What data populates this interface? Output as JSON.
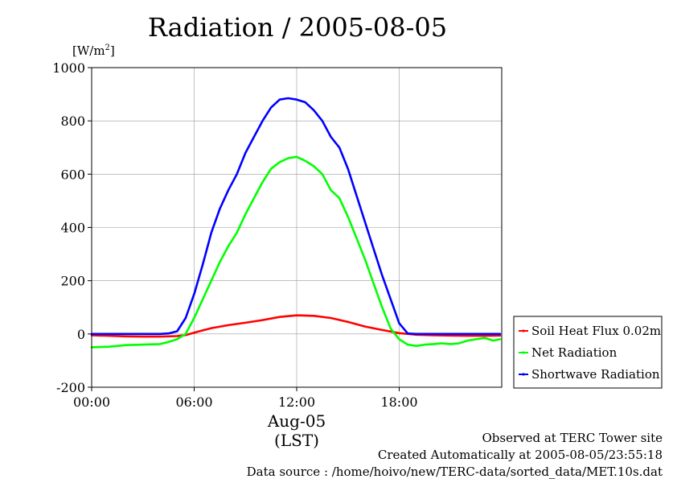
{
  "title": "Radiation / 2005-08-05",
  "unit": {
    "text": "[W/m",
    "sup": "2",
    "close": "]"
  },
  "x_axis": {
    "ticks": [
      "00:00",
      "06:00",
      "12:00",
      "18:00"
    ],
    "date_label": "Aug-05",
    "tz_label": "(LST)"
  },
  "footer": {
    "observed": "Observed at TERC Tower site",
    "created": "Created Automatically at 2005-08-05/23:55:18",
    "source": "Data source : /home/hoivo/new/TERC-data/sorted_data/MET.10s.dat"
  },
  "chart_data": {
    "type": "line",
    "xlabel": "Aug-05 (LST)",
    "ylabel": "[W/m2]",
    "xlim": [
      0,
      24
    ],
    "ylim": [
      -200,
      1000
    ],
    "x_ticks": [
      0,
      6,
      12,
      18
    ],
    "y_ticks": [
      -200,
      0,
      200,
      400,
      600,
      800,
      1000
    ],
    "y_tick_labels": [
      "-200",
      "0",
      "200",
      "400",
      "600",
      "800",
      "1000"
    ],
    "grid": true,
    "legend_position": "right",
    "series": [
      {
        "name": "Soil Heat Flux 0.02m",
        "color": "#ff0000",
        "x": [
          0,
          1,
          2,
          3,
          4,
          5,
          5.5,
          6,
          7,
          8,
          9,
          10,
          11,
          12,
          13,
          14,
          15,
          16,
          17,
          18,
          19,
          20,
          21,
          22,
          23,
          23.9
        ],
        "y": [
          -5,
          -7,
          -9,
          -10,
          -10,
          -8,
          -4,
          5,
          22,
          33,
          42,
          52,
          64,
          70,
          68,
          60,
          45,
          28,
          15,
          3,
          -3,
          -5,
          -6,
          -7,
          -7,
          -6
        ]
      },
      {
        "name": "Net Radiation",
        "color": "#00ff00",
        "x": [
          0,
          1,
          2,
          3,
          4,
          4.5,
          5,
          5.5,
          6,
          6.5,
          7,
          7.5,
          8,
          8.5,
          9,
          9.5,
          10,
          10.5,
          11,
          11.5,
          12,
          12.5,
          13,
          13.5,
          14,
          14.5,
          15,
          15.5,
          16,
          16.5,
          17,
          17.5,
          18,
          18.5,
          19,
          19.5,
          20,
          20.5,
          21,
          21.5,
          22,
          22.5,
          23,
          23.5,
          23.9
        ],
        "y": [
          -50,
          -48,
          -42,
          -40,
          -38,
          -30,
          -20,
          0,
          60,
          130,
          200,
          270,
          330,
          380,
          450,
          510,
          570,
          620,
          645,
          660,
          665,
          650,
          630,
          600,
          540,
          510,
          440,
          360,
          280,
          190,
          100,
          20,
          -20,
          -40,
          -45,
          -40,
          -38,
          -35,
          -38,
          -35,
          -25,
          -20,
          -15,
          -25,
          -20
        ]
      },
      {
        "name": "Shortwave Radiation",
        "color": "#0000ff",
        "x": [
          0,
          1,
          2,
          3,
          4,
          4.5,
          5,
          5.5,
          6,
          6.5,
          7,
          7.5,
          8,
          8.5,
          9,
          9.5,
          10,
          10.5,
          11,
          11.5,
          12,
          12.5,
          13,
          13.5,
          14,
          14.5,
          15,
          15.5,
          16,
          16.5,
          17,
          17.5,
          18,
          18.5,
          19,
          20,
          21,
          22,
          23,
          23.9
        ],
        "y": [
          0,
          0,
          0,
          0,
          0,
          2,
          10,
          60,
          150,
          260,
          380,
          470,
          540,
          600,
          680,
          740,
          800,
          850,
          880,
          885,
          880,
          870,
          840,
          800,
          740,
          700,
          620,
          520,
          420,
          320,
          220,
          130,
          40,
          2,
          0,
          0,
          0,
          0,
          0,
          0
        ]
      }
    ]
  }
}
